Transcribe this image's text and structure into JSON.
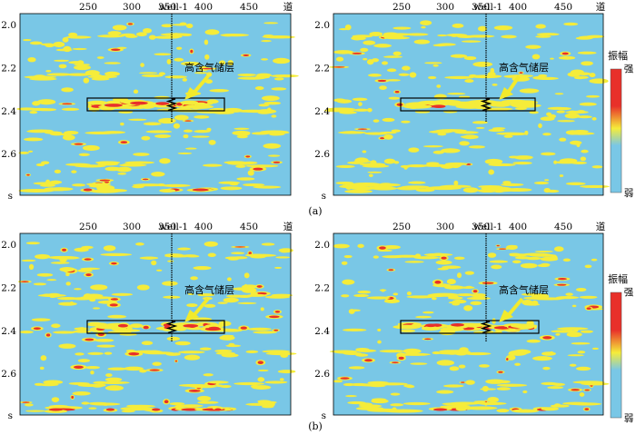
{
  "figure": {
    "x_axis_unit": "道",
    "y_axis_unit": "s",
    "well_label": "well-1",
    "annotation": "高含气储层",
    "colorbar": {
      "title": "振幅",
      "high": "强",
      "low": "弱",
      "stops": [
        "#e8302a",
        "#f5ec3a",
        "#79c7e6"
      ]
    },
    "colors": {
      "background": "#79c7e6",
      "low_amplitude": "#f5ec3a",
      "high_amplitude": "#e8302a",
      "arrow": "#f2ea2c"
    }
  },
  "panels": [
    {
      "id": "a-left",
      "row": "a",
      "x_ticks": [
        "250",
        "300",
        "350"
      ],
      "x_ticks_after_well": [
        "400",
        "450"
      ],
      "y_ticks": [
        "2.0",
        "2.2",
        "2.4",
        "2.6"
      ]
    },
    {
      "id": "a-right",
      "row": "a",
      "x_ticks": [
        "250",
        "300",
        "350"
      ],
      "x_ticks_after_well": [
        "400",
        "450"
      ],
      "y_ticks": [
        "2.0",
        "2.2",
        "2.4",
        "2.6"
      ]
    },
    {
      "id": "b-left",
      "row": "b",
      "x_ticks": [
        "250",
        "300",
        "350"
      ],
      "x_ticks_after_well": [
        "400",
        "450"
      ],
      "y_ticks": [
        "2.0",
        "2.2",
        "2.4",
        "2.6"
      ]
    },
    {
      "id": "b-right",
      "row": "b",
      "x_ticks": [
        "250",
        "300",
        "350"
      ],
      "x_ticks_after_well": [
        "400",
        "450"
      ],
      "y_ticks": [
        "2.0",
        "2.2",
        "2.4",
        "2.6"
      ]
    }
  ],
  "captions": {
    "a": "(a)",
    "b": "(b)"
  }
}
